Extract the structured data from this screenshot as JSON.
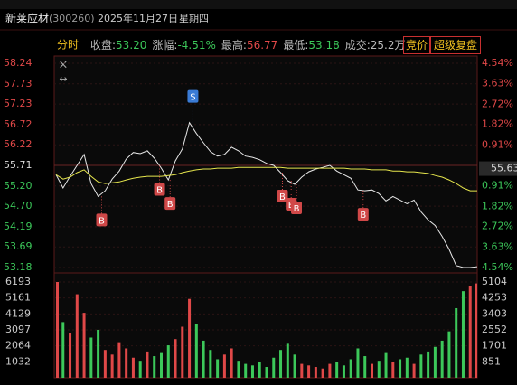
{
  "header": {
    "name": "新莱应材",
    "code": "(300260)",
    "date": "2025年11月27日",
    "weekday": "星期四",
    "tab": "分时",
    "stats": [
      {
        "label": "收盘:",
        "value": "53.20",
        "color": "#3cc85a"
      },
      {
        "label": "涨幅:",
        "value": "-4.51%",
        "color": "#3cc85a"
      },
      {
        "label": "最高:",
        "value": "56.77",
        "color": "#e04848"
      },
      {
        "label": "最低:",
        "value": "53.18",
        "color": "#3cc85a"
      },
      {
        "label": "成交:",
        "value": "25.2万",
        "color": "#bbbbbb"
      }
    ],
    "buttons": [
      "竞价",
      "超级复盘"
    ]
  },
  "chart_data": [
    {
      "type": "line",
      "x": [
        0,
        4,
        8,
        12,
        16,
        20,
        24,
        28,
        32,
        36,
        40,
        44,
        48,
        52,
        56,
        60,
        64,
        68,
        72,
        76,
        80,
        84,
        88,
        92,
        96,
        100,
        104,
        108,
        112,
        116,
        120,
        124,
        128,
        132,
        136,
        140,
        144,
        148,
        152,
        156,
        160,
        164,
        168,
        172,
        176,
        180,
        184,
        188,
        192,
        196,
        200,
        204,
        208,
        212,
        216,
        220,
        224,
        228,
        232,
        236,
        240
      ],
      "xlim": [
        0,
        240
      ],
      "series": [
        {
          "color": "#e8e8e8",
          "values": [
            55.48,
            55.15,
            55.44,
            55.71,
            55.98,
            55.26,
            54.94,
            55.08,
            55.37,
            55.57,
            55.87,
            56.03,
            56.0,
            56.07,
            55.89,
            55.64,
            55.35,
            55.82,
            56.12,
            56.77,
            56.5,
            56.27,
            56.05,
            55.94,
            55.98,
            56.16,
            56.07,
            55.94,
            55.91,
            55.85,
            55.76,
            55.71,
            55.53,
            55.33,
            55.24,
            55.42,
            55.55,
            55.62,
            55.66,
            55.71,
            55.57,
            55.48,
            55.39,
            55.1,
            55.08,
            55.1,
            55.01,
            54.83,
            54.94,
            54.85,
            54.76,
            54.85,
            54.56,
            54.36,
            54.22,
            53.95,
            53.63,
            53.23,
            53.18,
            53.18,
            53.2
          ]
        },
        {
          "color": "#e6e64d",
          "values": [
            55.48,
            55.37,
            55.42,
            55.53,
            55.6,
            55.44,
            55.3,
            55.26,
            55.28,
            55.3,
            55.35,
            55.39,
            55.42,
            55.44,
            55.44,
            55.44,
            55.46,
            55.48,
            55.53,
            55.57,
            55.6,
            55.62,
            55.62,
            55.64,
            55.64,
            55.64,
            55.66,
            55.66,
            55.66,
            55.66,
            55.66,
            55.66,
            55.66,
            55.64,
            55.64,
            55.64,
            55.64,
            55.64,
            55.64,
            55.64,
            55.64,
            55.64,
            55.62,
            55.62,
            55.62,
            55.6,
            55.6,
            55.6,
            55.57,
            55.57,
            55.55,
            55.55,
            55.53,
            55.51,
            55.46,
            55.42,
            55.35,
            55.26,
            55.15,
            55.08,
            55.08
          ]
        }
      ],
      "ylim": [
        53.18,
        58.24
      ],
      "yticks": [
        58.24,
        57.73,
        57.23,
        56.72,
        56.22,
        55.71,
        {
          "value": 55.2,
          "label": "55.20"
        },
        {
          "value": 54.7,
          "label": "54.70"
        },
        54.19,
        53.69,
        53.18
      ],
      "y2lim": [
        -4.54,
        4.54
      ],
      "y2ticks": [
        {
          "value": 4.54,
          "label": "4.54%"
        },
        {
          "value": 3.63,
          "label": "3.63%"
        },
        {
          "value": 2.72,
          "label": "2.72%"
        },
        {
          "value": 1.82,
          "label": "1.82%"
        },
        {
          "value": 0.91,
          "label": "0.91%"
        },
        {
          "value": -0.91,
          "label": "0.91%"
        },
        {
          "value": -1.82,
          "label": "1.82%"
        },
        {
          "value": -2.72,
          "label": "2.72%"
        },
        {
          "value": -3.63,
          "label": "3.63%"
        },
        {
          "value": -4.54,
          "label": "4.54%"
        }
      ],
      "hover_price": 55.63,
      "up_color": "#e04848",
      "down_color": "#3cc85a",
      "grid": true,
      "markers": [
        {
          "label": "S",
          "x": 78,
          "price": 56.77,
          "color": "#3a7bd5"
        },
        {
          "label": "B",
          "x": 26,
          "price": 54.94,
          "color": "#d04848"
        },
        {
          "label": "B",
          "x": 59,
          "price": 55.7,
          "color": "#d04848"
        },
        {
          "label": "B",
          "x": 65,
          "price": 55.35,
          "color": "#d04848"
        },
        {
          "label": "B",
          "x": 129,
          "price": 55.53,
          "color": "#d04848"
        },
        {
          "label": "B",
          "x": 134,
          "price": 55.33,
          "color": "#d04848"
        },
        {
          "label": "B",
          "x": 137,
          "price": 55.24,
          "color": "#d04848"
        },
        {
          "label": "B",
          "x": 175,
          "price": 55.08,
          "color": "#d04848"
        }
      ]
    },
    {
      "type": "bar",
      "values": [
        6193,
        3600,
        2900,
        5400,
        4200,
        2600,
        3100,
        1800,
        1500,
        2300,
        1900,
        1300,
        1100,
        1700,
        1400,
        1600,
        2100,
        2500,
        3300,
        5100,
        3500,
        2400,
        1800,
        1200,
        1500,
        1900,
        1100,
        900,
        800,
        1000,
        700,
        1300,
        1800,
        2200,
        1500,
        900,
        800,
        700,
        600,
        900,
        1000,
        800,
        1200,
        1900,
        1400,
        900,
        1100,
        1600,
        1000,
        1200,
        1300,
        900,
        1500,
        1700,
        2000,
        2400,
        3000,
        4500,
        5600,
        5900,
        6100
      ],
      "ylim": [
        0,
        6193
      ],
      "yticks": [
        6193,
        5161,
        4129,
        3097,
        2064,
        1032
      ],
      "y2lim": [
        0,
        5104
      ],
      "y2ticks": [
        5104,
        4253,
        3403,
        2552,
        1701,
        851
      ]
    }
  ]
}
